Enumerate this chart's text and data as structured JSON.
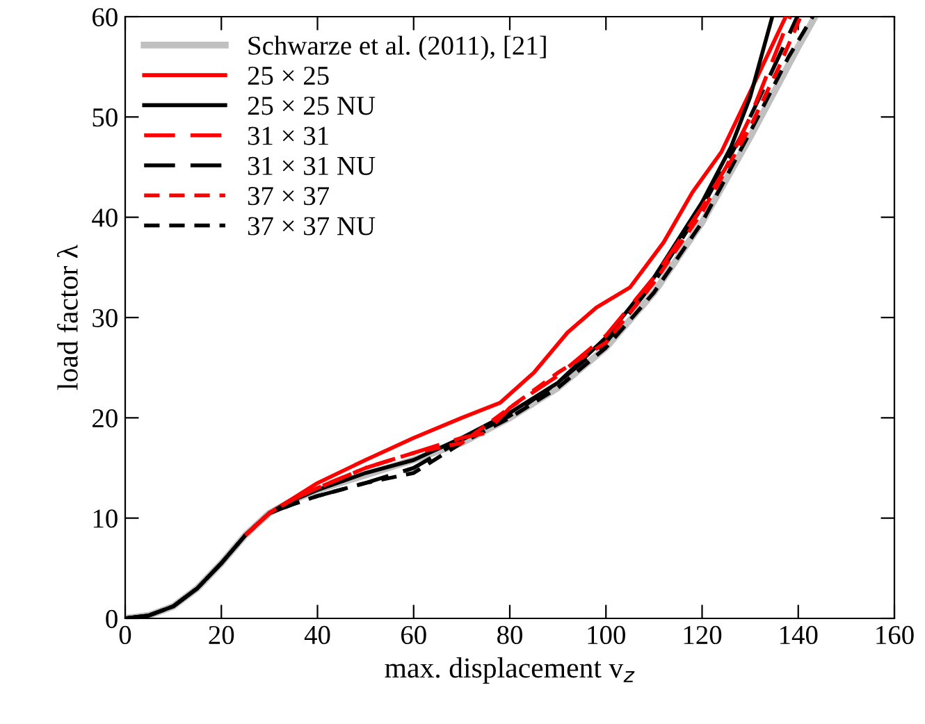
{
  "chart_data": {
    "type": "line",
    "xlabel": "max. displacement v$_{z}$",
    "ylabel": "load factor λ",
    "xlim": [
      0,
      160
    ],
    "ylim": [
      0,
      60
    ],
    "xticks": [
      0,
      20,
      40,
      60,
      80,
      100,
      120,
      140,
      160
    ],
    "yticks": [
      0,
      10,
      20,
      30,
      40,
      50,
      60
    ],
    "grid": false,
    "legend": "top left",
    "marker": "none",
    "series": [
      {
        "name": "Schwarze et al. (2011), [21]",
        "color": "#c0c0c0",
        "line_style": "solid",
        "x": [
          0,
          5,
          10,
          15,
          20,
          25,
          30,
          35,
          40,
          50,
          60,
          70,
          80,
          90,
          100,
          110,
          120,
          130,
          140,
          143.5
        ],
        "values": [
          0,
          0.3,
          1.2,
          3,
          5.5,
          8.3,
          10.5,
          11.8,
          12.8,
          14.3,
          15.8,
          17.5,
          20,
          23,
          27,
          32.5,
          39.5,
          48,
          57,
          60
        ]
      },
      {
        "name": "25 × 25",
        "color": "#ff0000",
        "line_style": "solid",
        "x": [
          25,
          30,
          35,
          40,
          50,
          60,
          70,
          78,
          85,
          92,
          98,
          105,
          112,
          118,
          124,
          130,
          137.4
        ],
        "values": [
          8.3,
          10.5,
          12,
          13.5,
          15.8,
          18,
          20,
          21.5,
          24.5,
          28.5,
          31,
          33,
          37.5,
          42.5,
          46.5,
          52.5,
          60
        ]
      },
      {
        "name": "25 × 25 NU",
        "color": "#000000",
        "line_style": "solid",
        "x": [
          0,
          5,
          10,
          15,
          20,
          25,
          30,
          35,
          40,
          50,
          60,
          70,
          80,
          90,
          100,
          110,
          120,
          126,
          130,
          134.6
        ],
        "values": [
          0,
          0.3,
          1.2,
          3,
          5.5,
          8.3,
          10.5,
          11.8,
          12.8,
          14.5,
          15.8,
          18,
          20.5,
          23.5,
          28,
          34,
          41.5,
          47,
          52,
          60
        ]
      },
      {
        "name": "31 × 31",
        "color": "#ff0000",
        "line_style": "longdash",
        "x": [
          25,
          30,
          35,
          40,
          50,
          60,
          70,
          75,
          80,
          90,
          100,
          110,
          120,
          125,
          130,
          138.3
        ],
        "values": [
          8.3,
          10.5,
          11.9,
          13,
          15,
          16.5,
          18,
          18.5,
          21,
          24.2,
          28.2,
          34,
          41,
          45,
          50,
          60
        ]
      },
      {
        "name": "31 × 31 NU",
        "color": "#000000",
        "line_style": "longdash",
        "x": [
          0,
          5,
          10,
          15,
          20,
          25,
          30,
          35,
          40,
          50,
          60,
          70,
          80,
          90,
          100,
          110,
          120,
          128,
          134,
          139.8
        ],
        "values": [
          0,
          0.3,
          1.2,
          3,
          5.5,
          8.3,
          10.5,
          11.4,
          12.2,
          13.5,
          15,
          17.8,
          20.2,
          23.5,
          27.5,
          33.5,
          41,
          48,
          54,
          60
        ]
      },
      {
        "name": "37 × 37",
        "color": "#ff0000",
        "line_style": "dashed",
        "x": [
          25,
          30,
          35,
          40,
          50,
          60,
          70,
          80,
          90,
          100,
          110,
          120,
          130,
          136,
          140.5
        ],
        "values": [
          8.3,
          10.5,
          11.9,
          13,
          15,
          16.5,
          17.5,
          21,
          24.5,
          27.5,
          33.5,
          40.5,
          49,
          55,
          60
        ]
      },
      {
        "name": "37 × 37 NU",
        "color": "#000000",
        "line_style": "dashed",
        "x": [
          0,
          5,
          10,
          15,
          20,
          25,
          30,
          35,
          40,
          50,
          60,
          70,
          80,
          90,
          100,
          110,
          120,
          130,
          138,
          143
        ],
        "values": [
          0,
          0.3,
          1.2,
          3,
          5.5,
          8.3,
          10.5,
          11.4,
          12.2,
          13.5,
          14.5,
          17.5,
          20,
          23,
          27,
          32.5,
          39.5,
          48.5,
          56,
          60
        ]
      }
    ]
  }
}
